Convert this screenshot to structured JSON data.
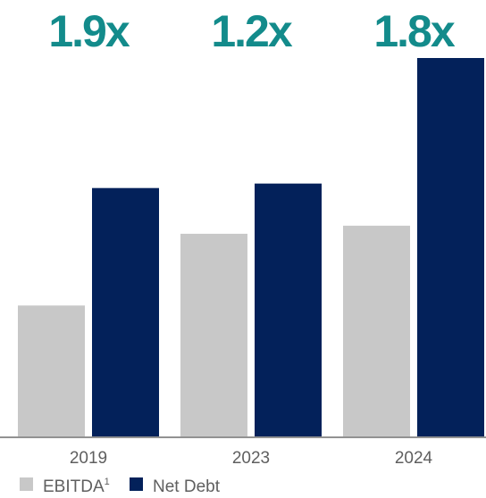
{
  "chart_data": {
    "type": "bar",
    "categories": [
      "2019",
      "2023",
      "2024"
    ],
    "series": [
      {
        "name": "EBITDA",
        "values": [
          146,
          226,
          235
        ],
        "color": "#c8c8c8"
      },
      {
        "name": "Net Debt",
        "values": [
          277,
          282,
          422
        ],
        "color": "#03215a"
      }
    ],
    "ratio_labels": [
      "1.9x",
      "1.2x",
      "1.8x"
    ],
    "ratio_color": "#138b8b",
    "legend": {
      "position": "bottom-left",
      "items": [
        {
          "label": "EBITDA",
          "superscript": "1",
          "color": "#c8c8c8"
        },
        {
          "label": "Net Debt",
          "superscript": "",
          "color": "#03215a"
        }
      ]
    },
    "tick_color": "#5f5f5f",
    "axis_color": "#6e6e6e",
    "title": "",
    "xlabel": "",
    "ylabel": "",
    "ylim": [
      0,
      422
    ],
    "grid": false,
    "show_y_axis": false
  }
}
